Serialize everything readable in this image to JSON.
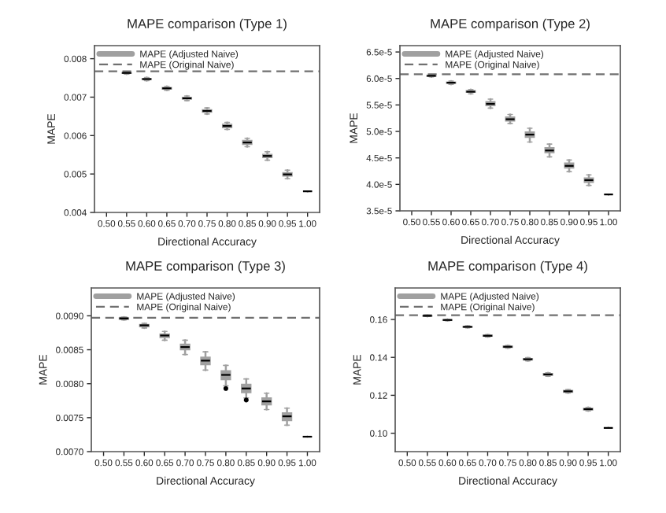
{
  "chart_data": [
    {
      "type": "box",
      "title": "MAPE comparison (Type 1)",
      "xlabel": "Directional Accuracy",
      "ylabel": "MAPE",
      "categories": [
        "0.50",
        "0.55",
        "0.60",
        "0.65",
        "0.70",
        "0.75",
        "0.80",
        "0.85",
        "0.90",
        "0.95",
        "1.00"
      ],
      "ylim": [
        0.004,
        0.00834
      ],
      "yticks": [
        0.004,
        0.005,
        0.006,
        0.007,
        0.008
      ],
      "legend": "top left",
      "grid": false,
      "series": [
        {
          "name": "MAPE (Adjusted Naive)",
          "color": "#a0a0a0",
          "boxes": [
            null,
            {
              "low": 0.0076,
              "q1": 0.00762,
              "median": 0.00763,
              "q3": 0.00764,
              "high": 0.00766
            },
            {
              "low": 0.00743,
              "q1": 0.00746,
              "median": 0.00747,
              "q3": 0.00748,
              "high": 0.00751
            },
            {
              "low": 0.00718,
              "q1": 0.00721,
              "median": 0.00723,
              "q3": 0.00725,
              "high": 0.00728
            },
            {
              "low": 0.00691,
              "q1": 0.00695,
              "median": 0.00697,
              "q3": 0.00699,
              "high": 0.00703
            },
            {
              "low": 0.00656,
              "q1": 0.00661,
              "median": 0.00664,
              "q3": 0.00667,
              "high": 0.00672
            },
            {
              "low": 0.00616,
              "q1": 0.00621,
              "median": 0.00625,
              "q3": 0.00629,
              "high": 0.00634
            },
            {
              "low": 0.00571,
              "q1": 0.00577,
              "median": 0.00582,
              "q3": 0.00587,
              "high": 0.00593
            },
            {
              "low": 0.00536,
              "q1": 0.00543,
              "median": 0.00547,
              "q3": 0.00551,
              "high": 0.00558
            },
            {
              "low": 0.00488,
              "q1": 0.00495,
              "median": 0.00499,
              "q3": 0.00503,
              "high": 0.0051
            },
            {
              "low": 0.00455,
              "q1": 0.00455,
              "median": 0.00455,
              "q3": 0.00455,
              "high": 0.00455
            }
          ]
        }
      ],
      "ref_lines": [
        {
          "axis": "y",
          "value": 0.00767,
          "label": "MAPE (Original Naive)",
          "color": "#707070",
          "line_style": "dashed"
        }
      ]
    },
    {
      "type": "box",
      "title": "MAPE comparison (Type 2)",
      "xlabel": "Directional Accuracy",
      "ylabel": "MAPE",
      "categories": [
        "0.50",
        "0.55",
        "0.60",
        "0.65",
        "0.70",
        "0.75",
        "0.80",
        "0.85",
        "0.90",
        "0.95",
        "1.00"
      ],
      "ylim": [
        3.5e-05,
        6.62e-05
      ],
      "yticks": [
        {
          "value": 3.5e-05,
          "label": "3.5e-5"
        },
        {
          "value": 4e-05,
          "label": "4.0e-5"
        },
        {
          "value": 4.5e-05,
          "label": "4.5e-5"
        },
        {
          "value": 5e-05,
          "label": "5.0e-5"
        },
        {
          "value": 5.5e-05,
          "label": "5.5e-5"
        },
        {
          "value": 6e-05,
          "label": "6.0e-5"
        },
        {
          "value": 6.5e-05,
          "label": "6.5e-5"
        }
      ],
      "legend": "top left",
      "grid": false,
      "series": [
        {
          "name": "MAPE (Adjusted Naive)",
          "color": "#a0a0a0",
          "boxes": [
            null,
            {
              "low": 6.03e-05,
              "q1": 6.04e-05,
              "median": 6.05e-05,
              "q3": 6.06e-05,
              "high": 6.07e-05
            },
            {
              "low": 5.89e-05,
              "q1": 5.91e-05,
              "median": 5.92e-05,
              "q3": 5.93e-05,
              "high": 5.95e-05
            },
            {
              "low": 5.71e-05,
              "q1": 5.74e-05,
              "median": 5.75e-05,
              "q3": 5.77e-05,
              "high": 5.79e-05
            },
            {
              "low": 5.44e-05,
              "q1": 5.49e-05,
              "median": 5.52e-05,
              "q3": 5.56e-05,
              "high": 5.61e-05
            },
            {
              "low": 5.15e-05,
              "q1": 5.2e-05,
              "median": 5.23e-05,
              "q3": 5.27e-05,
              "high": 5.32e-05
            },
            {
              "low": 4.8e-05,
              "q1": 4.89e-05,
              "median": 4.94e-05,
              "q3": 4.99e-05,
              "high": 5.06e-05
            },
            {
              "low": 4.52e-05,
              "q1": 4.6e-05,
              "median": 4.64e-05,
              "q3": 4.69e-05,
              "high": 4.76e-05
            },
            {
              "low": 4.24e-05,
              "q1": 4.31e-05,
              "median": 4.35e-05,
              "q3": 4.4e-05,
              "high": 4.46e-05
            },
            {
              "low": 3.98e-05,
              "q1": 4.04e-05,
              "median": 4.08e-05,
              "q3": 4.12e-05,
              "high": 4.18e-05
            },
            {
              "low": 3.81e-05,
              "q1": 3.81e-05,
              "median": 3.81e-05,
              "q3": 3.81e-05,
              "high": 3.81e-05
            }
          ]
        }
      ],
      "ref_lines": [
        {
          "axis": "y",
          "value": 6.08e-05,
          "label": "MAPE (Original Naive)",
          "color": "#707070",
          "line_style": "dashed"
        }
      ]
    },
    {
      "type": "box",
      "title": "MAPE comparison (Type 3)",
      "xlabel": "Directional Accuracy",
      "ylabel": "MAPE",
      "categories": [
        "0.50",
        "0.55",
        "0.60",
        "0.65",
        "0.70",
        "0.75",
        "0.80",
        "0.85",
        "0.90",
        "0.95",
        "1.00"
      ],
      "ylim": [
        0.007,
        0.00941
      ],
      "yticks": [
        {
          "value": 0.007,
          "label": "0.0070"
        },
        {
          "value": 0.0075,
          "label": "0.0075"
        },
        {
          "value": 0.008,
          "label": "0.0080"
        },
        {
          "value": 0.0085,
          "label": "0.0085"
        },
        {
          "value": 0.009,
          "label": "0.0090"
        }
      ],
      "legend": "top left",
      "grid": false,
      "series": [
        {
          "name": "MAPE (Adjusted Naive)",
          "color": "#a0a0a0",
          "boxes": [
            null,
            {
              "low": 0.00894,
              "q1": 0.00895,
              "median": 0.00896,
              "q3": 0.00897,
              "high": 0.00898
            },
            {
              "low": 0.00882,
              "q1": 0.00884,
              "median": 0.00886,
              "q3": 0.00887,
              "high": 0.00889
            },
            {
              "low": 0.00864,
              "q1": 0.00868,
              "median": 0.00871,
              "q3": 0.00873,
              "high": 0.00877
            },
            {
              "low": 0.00843,
              "q1": 0.0085,
              "median": 0.00854,
              "q3": 0.00858,
              "high": 0.00864
            },
            {
              "low": 0.0082,
              "q1": 0.00828,
              "median": 0.00834,
              "q3": 0.00839,
              "high": 0.00847
            },
            {
              "low": 0.00797,
              "q1": 0.00806,
              "median": 0.00813,
              "q3": 0.00819,
              "high": 0.00827,
              "outliers": [
                0.00793
              ]
            },
            {
              "low": 0.00779,
              "q1": 0.00787,
              "median": 0.00793,
              "q3": 0.00799,
              "high": 0.00807,
              "outliers": [
                0.00776
              ]
            },
            {
              "low": 0.00762,
              "q1": 0.00769,
              "median": 0.00774,
              "q3": 0.00779,
              "high": 0.00786
            },
            {
              "low": 0.00739,
              "q1": 0.00746,
              "median": 0.00752,
              "q3": 0.00757,
              "high": 0.00764
            },
            {
              "low": 0.00722,
              "q1": 0.00722,
              "median": 0.00722,
              "q3": 0.00722,
              "high": 0.00722
            }
          ]
        }
      ],
      "ref_lines": [
        {
          "axis": "y",
          "value": 0.00897,
          "label": "MAPE (Original Naive)",
          "color": "#707070",
          "line_style": "dashed"
        }
      ]
    },
    {
      "type": "box",
      "title": "MAPE comparison (Type 4)",
      "xlabel": "Directional Accuracy",
      "ylabel": "MAPE",
      "categories": [
        "0.50",
        "0.55",
        "0.60",
        "0.65",
        "0.70",
        "0.75",
        "0.80",
        "0.85",
        "0.90",
        "0.95",
        "1.00"
      ],
      "ylim": [
        0.0903,
        0.1766
      ],
      "yticks": [
        {
          "value": 0.1,
          "label": "0.10"
        },
        {
          "value": 0.12,
          "label": "0.12"
        },
        {
          "value": 0.14,
          "label": "0.14"
        },
        {
          "value": 0.16,
          "label": "0.16"
        }
      ],
      "legend": "top left",
      "grid": false,
      "series": [
        {
          "name": "MAPE (Adjusted Naive)",
          "color": "#a0a0a0",
          "boxes": [
            null,
            {
              "low": 0.1616,
              "q1": 0.1618,
              "median": 0.1619,
              "q3": 0.162,
              "high": 0.1622
            },
            {
              "low": 0.1593,
              "q1": 0.1595,
              "median": 0.1597,
              "q3": 0.1599,
              "high": 0.1601
            },
            {
              "low": 0.1556,
              "q1": 0.1559,
              "median": 0.1561,
              "q3": 0.1563,
              "high": 0.1566
            },
            {
              "low": 0.1508,
              "q1": 0.1512,
              "median": 0.1514,
              "q3": 0.1517,
              "high": 0.152
            },
            {
              "low": 0.1449,
              "q1": 0.1453,
              "median": 0.1456,
              "q3": 0.1459,
              "high": 0.1463
            },
            {
              "low": 0.1382,
              "q1": 0.1387,
              "median": 0.139,
              "q3": 0.1393,
              "high": 0.1398
            },
            {
              "low": 0.1301,
              "q1": 0.1306,
              "median": 0.131,
              "q3": 0.1314,
              "high": 0.1319
            },
            {
              "low": 0.1212,
              "q1": 0.1217,
              "median": 0.1221,
              "q3": 0.1225,
              "high": 0.123
            },
            {
              "low": 0.1118,
              "q1": 0.1123,
              "median": 0.1127,
              "q3": 0.1131,
              "high": 0.1136
            },
            {
              "low": 0.1028,
              "q1": 0.1028,
              "median": 0.1028,
              "q3": 0.1028,
              "high": 0.1028
            }
          ]
        }
      ],
      "ref_lines": [
        {
          "axis": "y",
          "value": 0.1622,
          "label": "MAPE (Original Naive)",
          "color": "#707070",
          "line_style": "dashed"
        }
      ]
    }
  ]
}
